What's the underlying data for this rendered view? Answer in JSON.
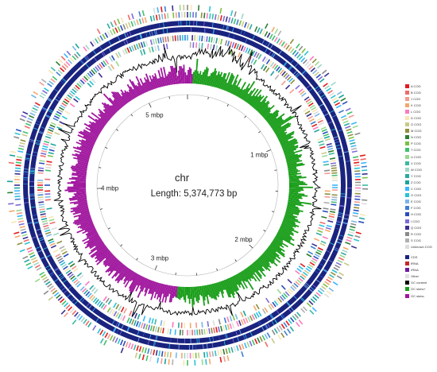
{
  "center": {
    "name": "chr",
    "length_text": "Length: 5,374,773 bp"
  },
  "scale": {
    "genome_length_bp": 5374773,
    "tick_labels": [
      "1 mbp",
      "2 mbp",
      "3 mbp",
      "4 mbp",
      "5 mbp"
    ]
  },
  "legend": {
    "cog_items": [
      {
        "label": "A COG",
        "color": "#e41a1c"
      },
      {
        "label": "B COG",
        "color": "#f06a6a"
      },
      {
        "label": "J COG",
        "color": "#f49a8e"
      },
      {
        "label": "K COG",
        "color": "#f2a86a"
      },
      {
        "label": "L COG",
        "color": "#fb7bbd"
      },
      {
        "label": "D COG",
        "color": "#f7e7b4"
      },
      {
        "label": "O COG",
        "color": "#c9c98a"
      },
      {
        "label": "M COG",
        "color": "#8f8f3c"
      },
      {
        "label": "N COG",
        "color": "#2e7d32"
      },
      {
        "label": "P COG",
        "color": "#7bc043"
      },
      {
        "label": "T COG",
        "color": "#41c06e"
      },
      {
        "label": "U COG",
        "color": "#9bd88f"
      },
      {
        "label": "V COG",
        "color": "#3cb9a2"
      },
      {
        "label": "W COG",
        "color": "#9fd6c9"
      },
      {
        "label": "Y COG",
        "color": "#2aa9a0"
      },
      {
        "label": "Z COG",
        "color": "#1ba39c"
      },
      {
        "label": "C COG",
        "color": "#38b6ff"
      },
      {
        "label": "G COG",
        "color": "#28c3d4"
      },
      {
        "label": "E COG",
        "color": "#7ab6e8"
      },
      {
        "label": "F COG",
        "color": "#3f7fd1"
      },
      {
        "label": "H COG",
        "color": "#2a4dbf"
      },
      {
        "label": "I COG",
        "color": "#7d6bd6"
      },
      {
        "label": "Q COG",
        "color": "#3b2f8f"
      },
      {
        "label": "R COG",
        "color": "#8a8a8a"
      },
      {
        "label": "S COG",
        "color": "#b0b0b0"
      },
      {
        "label": "Unknown COG",
        "color": "#dddddd"
      }
    ],
    "feature_items": [
      {
        "label": "CDS",
        "color": "#1a237e"
      },
      {
        "label": "tRNA",
        "color": "#c62828"
      },
      {
        "label": "rRNA",
        "color": "#6a1b9a"
      },
      {
        "label": "Other",
        "color": "#e0e0e0"
      },
      {
        "label": "GC content",
        "color": "#000000"
      },
      {
        "label": "GC skew+",
        "color": "#1a9e1a"
      },
      {
        "label": "GC skew-",
        "color": "#a0169e"
      }
    ]
  },
  "colors": {
    "gc_skew_positive": "#1a9e1a",
    "gc_skew_negative": "#a0169e",
    "gc_content": "#000000",
    "cds_ring": "#1a237e"
  }
}
